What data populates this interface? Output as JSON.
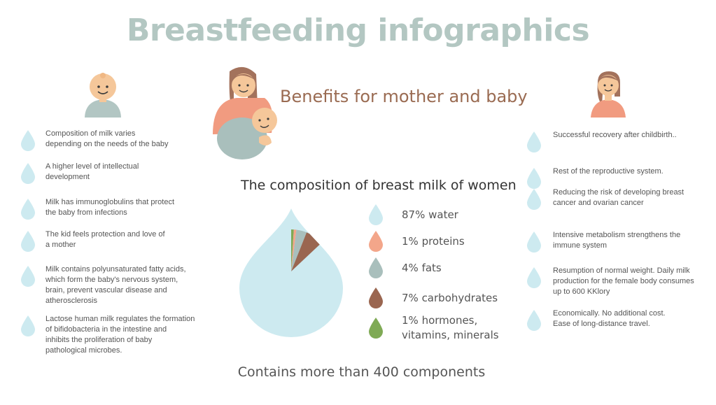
{
  "title": "Breastfeeding infographics",
  "subtitle": "Benefits for mother and baby",
  "pie_title": "The composition of breast milk of women",
  "footer": "Contains more than 400 components",
  "colors": {
    "water": "#cdeaf0",
    "proteins": "#f3a68a",
    "fats": "#a9bfbc",
    "carbohydrates": "#9a6650",
    "hormones": "#7faa55",
    "title": "#b3c7c2",
    "subtitle": "#9a6b52"
  },
  "baby_benefits": [
    {
      "icon": "drop-icon",
      "text": "Composition of milk varies\ndepending on the needs of the baby"
    },
    {
      "icon": "drop-icon",
      "text": "A higher level of intellectual\ndevelopment"
    },
    {
      "icon": "drop-icon",
      "text": "Milk has immunoglobulins that protect\n the baby from infections"
    },
    {
      "icon": "drop-icon",
      "text": "The kid feels protection and love of\na mother"
    },
    {
      "icon": "drop-icon",
      "text": "Milk contains polyunsaturated fatty acids,\nwhich form the baby's nervous system,\nbrain, prevent vascular disease and\natherosclerosis"
    },
    {
      "icon": "drop-icon",
      "text": "Lactose human milk regulates the formation\nof bifidobacteria in the intestine and\ninhibits the proliferation of baby\npathological microbes."
    }
  ],
  "mother_benefits": [
    {
      "icon": "drop-icon",
      "text": "Successful recovery after childbirth.."
    },
    {
      "icon": "drop-icon",
      "text": "Rest of the reproductive system."
    },
    {
      "icon": "drop-icon",
      "text": "Reducing the risk of developing breast\ncancer and ovarian cancer"
    },
    {
      "icon": "drop-icon",
      "text": "Intensive metabolism strengthens the\n immune system"
    },
    {
      "icon": "drop-icon",
      "text": "Resumption of normal weight. Daily milk\nproduction for the female body consumes\nup to 600 KKlory"
    },
    {
      "icon": "drop-icon",
      "text": "Economically. No additional cost.\nEase of long-distance travel."
    }
  ],
  "chart_data": {
    "type": "pie",
    "title": "The composition of breast milk of women",
    "categories": [
      "water",
      "proteins",
      "fats",
      "carbohydrates",
      "hormones, vitamins, minerals"
    ],
    "values": [
      87,
      1,
      4,
      7,
      1
    ],
    "legend": [
      {
        "key": "water",
        "label": "87% water"
      },
      {
        "key": "proteins",
        "label": "1% proteins"
      },
      {
        "key": "fats",
        "label": "4% fats"
      },
      {
        "key": "carbohydrates",
        "label": "7% carbohydrates"
      },
      {
        "key": "hormones",
        "label": "1% hormones,\nvitamins, minerals"
      }
    ]
  }
}
